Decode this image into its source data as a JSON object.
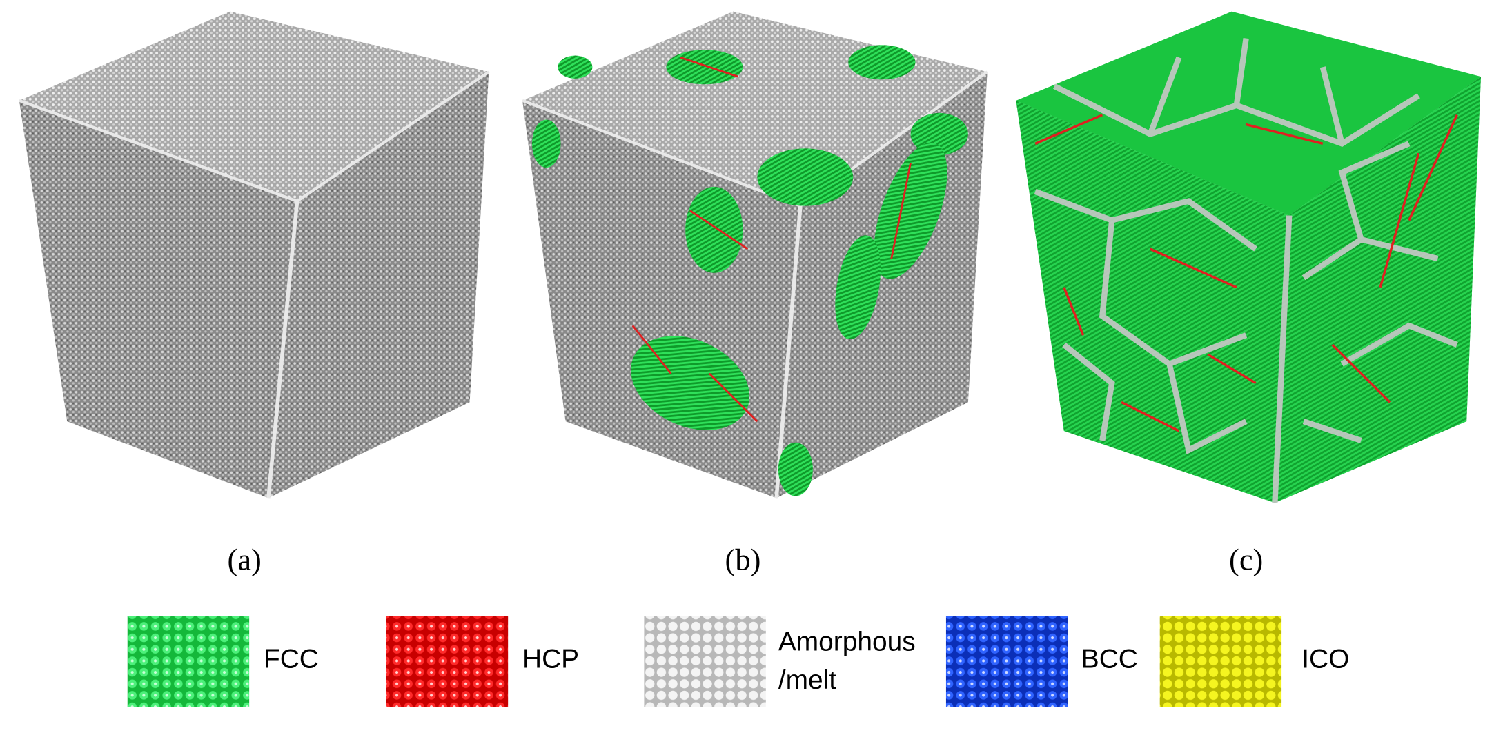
{
  "panels": [
    {
      "label": "(a)"
    },
    {
      "label": "(b)"
    },
    {
      "label": "(c)"
    }
  ],
  "legend": [
    {
      "lines": [
        "FCC"
      ]
    },
    {
      "lines": [
        "HCP"
      ]
    },
    {
      "lines": [
        "Amorphous",
        "/melt"
      ]
    },
    {
      "lines": [
        "BCC"
      ]
    },
    {
      "lines": [
        "ICO"
      ]
    }
  ]
}
